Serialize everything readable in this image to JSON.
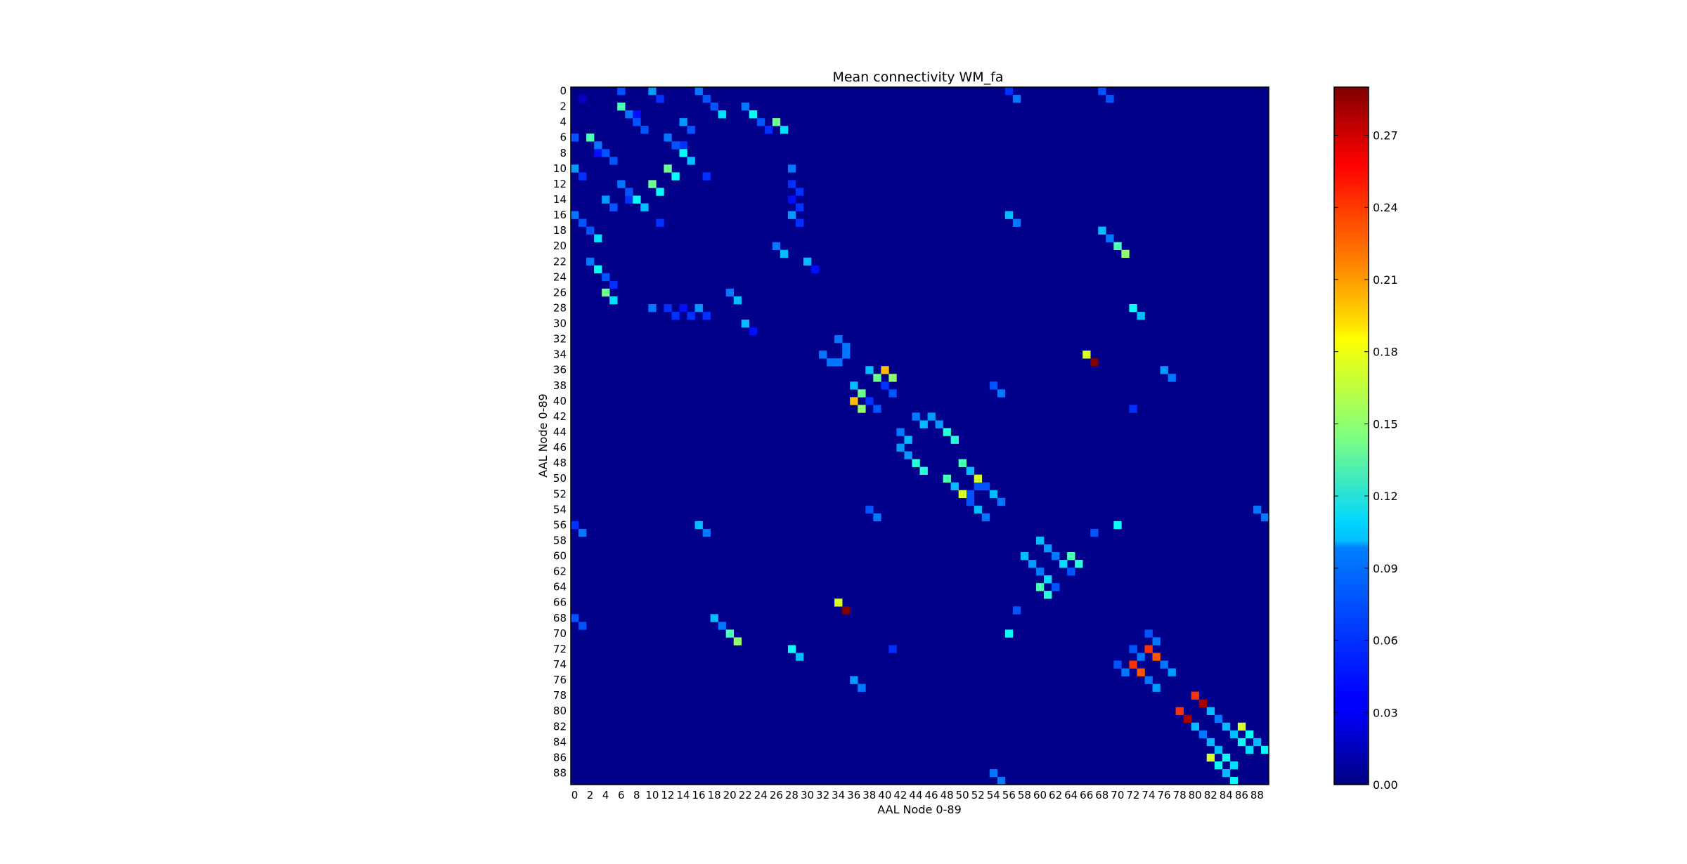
{
  "chart_data": {
    "type": "heatmap",
    "title": "Mean connectivity WM_fa",
    "xlabel": "AAL Node 0-89",
    "ylabel": "AAL Node 0-89",
    "n_nodes": 90,
    "tick_step": 2,
    "colormap": "jet",
    "value_range": [
      0,
      0.29
    ],
    "background_value": 0.003,
    "colorbar_ticks": [
      0.0,
      0.03,
      0.06,
      0.09,
      0.12,
      0.15,
      0.18,
      0.21,
      0.24,
      0.27
    ],
    "colorbar_tick_labels": [
      "0.00",
      "0.03",
      "0.06",
      "0.09",
      "0.12",
      "0.15",
      "0.18",
      "0.21",
      "0.24",
      "0.27"
    ],
    "cells": [
      [
        0,
        6,
        0.06
      ],
      [
        1,
        57,
        0.07
      ],
      [
        1,
        1,
        0.02
      ],
      [
        2,
        6,
        0.13
      ],
      [
        3,
        7,
        0.07
      ],
      [
        3,
        8,
        0.04
      ],
      [
        4,
        14,
        0.08
      ],
      [
        4,
        26,
        0.1
      ],
      [
        5,
        15,
        0.06
      ],
      [
        5,
        27,
        0.1
      ],
      [
        6,
        2,
        0.05
      ],
      [
        6,
        0,
        0.03
      ],
      [
        7,
        3,
        0.05
      ],
      [
        7,
        14,
        0.05
      ],
      [
        8,
        4,
        0.06
      ],
      [
        8,
        14,
        0.11
      ],
      [
        9,
        5,
        0.06
      ],
      [
        9,
        15,
        0.09
      ],
      [
        10,
        0,
        0.08
      ],
      [
        10,
        12,
        0.14
      ],
      [
        10,
        28,
        0.07
      ],
      [
        11,
        1,
        0.05
      ],
      [
        11,
        13,
        0.11
      ],
      [
        11,
        17,
        0.05
      ],
      [
        12,
        6,
        0.07
      ],
      [
        12,
        28,
        0.05
      ],
      [
        13,
        7,
        0.06
      ],
      [
        13,
        29,
        0.05
      ],
      [
        14,
        28,
        0.04
      ],
      [
        15,
        29,
        0.05
      ],
      [
        16,
        0,
        0.07
      ],
      [
        16,
        28,
        0.08
      ],
      [
        16,
        56,
        0.09
      ],
      [
        17,
        1,
        0.06
      ],
      [
        17,
        57,
        0.07
      ],
      [
        17,
        29,
        0.05
      ],
      [
        18,
        2,
        0.06
      ],
      [
        19,
        3,
        0.1
      ],
      [
        20,
        26,
        0.07
      ],
      [
        20,
        70,
        0.13
      ],
      [
        21,
        27,
        0.09
      ],
      [
        21,
        71,
        0.15
      ],
      [
        22,
        2,
        0.07
      ],
      [
        22,
        30,
        0.05
      ],
      [
        23,
        3,
        0.11
      ],
      [
        24,
        4,
        0.06
      ],
      [
        25,
        5,
        0.05
      ],
      [
        26,
        4,
        0.14
      ],
      [
        27,
        5,
        0.1
      ],
      [
        28,
        72,
        0.07
      ],
      [
        29,
        73,
        0.06
      ],
      [
        30,
        22,
        0.09
      ],
      [
        31,
        23,
        0.04
      ],
      [
        34,
        32,
        0.07
      ],
      [
        34,
        66,
        0.17
      ],
      [
        35,
        33,
        0.07
      ],
      [
        35,
        34,
        0.07
      ],
      [
        35,
        67,
        0.29
      ],
      [
        36,
        38,
        0.09
      ],
      [
        37,
        39,
        0.14
      ],
      [
        38,
        36,
        0.08
      ],
      [
        38,
        54,
        0.06
      ],
      [
        39,
        37,
        0.1
      ],
      [
        39,
        55,
        0.07
      ],
      [
        40,
        36,
        0.2
      ],
      [
        40,
        38,
        0.05
      ],
      [
        41,
        37,
        0.15
      ],
      [
        41,
        39,
        0.06
      ],
      [
        41,
        72,
        0.05
      ],
      [
        42,
        44,
        0.07
      ],
      [
        42,
        46,
        0.08
      ],
      [
        43,
        45,
        0.09
      ],
      [
        43,
        47,
        0.06
      ],
      [
        44,
        42,
        0.06
      ],
      [
        44,
        48,
        0.12
      ],
      [
        45,
        43,
        0.07
      ],
      [
        45,
        49,
        0.11
      ],
      [
        46,
        42,
        0.07
      ],
      [
        47,
        43,
        0.08
      ],
      [
        48,
        50,
        0.13
      ],
      [
        48,
        44,
        0.06
      ],
      [
        49,
        45,
        0.12
      ],
      [
        49,
        51,
        0.07
      ],
      [
        50,
        48,
        0.06
      ],
      [
        51,
        49,
        0.09
      ],
      [
        51,
        52,
        0.06
      ],
      [
        52,
        50,
        0.17
      ],
      [
        52,
        54,
        0.09
      ],
      [
        53,
        51,
        0.06
      ],
      [
        53,
        55,
        0.07
      ],
      [
        54,
        88,
        0.07
      ],
      [
        55,
        89,
        0.07
      ],
      [
        56,
        0,
        0.05
      ],
      [
        57,
        1,
        0.06
      ],
      [
        58,
        60,
        0.09
      ],
      [
        59,
        61,
        0.07
      ],
      [
        60,
        58,
        0.06
      ],
      [
        60,
        62,
        0.06
      ],
      [
        61,
        59,
        0.08
      ],
      [
        61,
        63,
        0.06
      ],
      [
        61,
        65,
        0.12
      ],
      [
        62,
        60,
        0.07
      ],
      [
        63,
        61,
        0.1
      ],
      [
        64,
        60,
        0.13
      ],
      [
        64,
        62,
        0.06
      ],
      [
        65,
        61,
        0.1
      ],
      [
        67,
        57,
        0.06
      ],
      [
        68,
        0,
        0.06
      ],
      [
        68,
        18,
        0.09
      ],
      [
        69,
        1,
        0.06
      ],
      [
        69,
        19,
        0.07
      ],
      [
        70,
        20,
        0.08
      ],
      [
        70,
        56,
        0.11
      ],
      [
        71,
        21,
        0.09
      ],
      [
        72,
        72,
        0.06
      ],
      [
        72,
        28,
        0.11
      ],
      [
        72,
        74,
        0.07
      ],
      [
        73,
        29,
        0.09
      ],
      [
        73,
        73,
        0.07
      ],
      [
        73,
        75,
        0.07
      ],
      [
        74,
        70,
        0.06
      ],
      [
        74,
        72,
        0.24
      ],
      [
        74,
        76,
        0.07
      ],
      [
        75,
        71,
        0.07
      ],
      [
        75,
        73,
        0.23
      ],
      [
        75,
        77,
        0.08
      ],
      [
        76,
        36,
        0.08
      ],
      [
        77,
        37,
        0.07
      ],
      [
        78,
        80,
        0.24
      ],
      [
        79,
        81,
        0.28
      ],
      [
        80,
        82,
        0.09
      ],
      [
        81,
        83,
        0.07
      ],
      [
        82,
        84,
        0.09
      ],
      [
        83,
        85,
        0.09
      ],
      [
        84,
        86,
        0.11
      ],
      [
        85,
        87,
        0.1
      ],
      [
        86,
        82,
        0.17
      ],
      [
        86,
        84,
        0.06
      ],
      [
        87,
        83,
        0.11
      ],
      [
        87,
        85,
        0.06
      ],
      [
        88,
        84,
        0.09
      ],
      [
        89,
        85,
        0.11
      ]
    ]
  }
}
